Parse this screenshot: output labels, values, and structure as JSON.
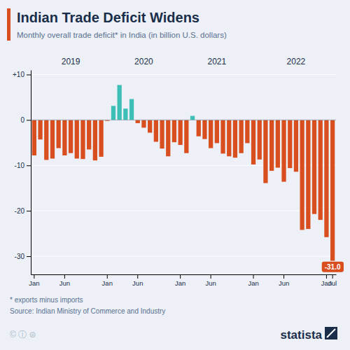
{
  "chart_data": {
    "type": "bar",
    "title": "Indian Trade Deficit Widens",
    "subtitle": "Monthly overall trade deficit* in India (in billion U.S. dollars)",
    "footnote": "* exports minus imports",
    "source": "Source: Indian Ministry of Commerce and Industry",
    "license": "©  Ⓘ  ⊜",
    "logo": "statista",
    "categories": [
      "Jan",
      null,
      null,
      null,
      null,
      "Jun",
      null,
      null,
      null,
      null,
      null,
      null,
      "Jan",
      null,
      null,
      null,
      null,
      "Jun",
      null,
      null,
      null,
      null,
      null,
      null,
      "Jan",
      null,
      null,
      null,
      null,
      "Jun",
      null,
      null,
      null,
      null,
      null,
      null,
      "Jan",
      null,
      null,
      null,
      null,
      "Jun",
      null,
      null,
      null,
      null,
      null,
      null,
      "Jan",
      "Jul"
    ],
    "values": [
      -7.8,
      -4.3,
      -8.8,
      -8.5,
      -6.2,
      -7.8,
      -7.3,
      -8.5,
      -8.6,
      -6.5,
      -8.9,
      -8.1,
      -0.2,
      3.1,
      7.7,
      2.5,
      4.6,
      -0.7,
      -1.7,
      -2.8,
      -4.8,
      -6.3,
      -8.0,
      -4.9,
      -5.5,
      -7.3,
      0.9,
      -3.6,
      -4.2,
      -6.2,
      -5.1,
      -7.4,
      -8.0,
      -8.3,
      -7.3,
      -5.1,
      -9.8,
      -8.7,
      -13.9,
      -11.2,
      -10.5,
      -13.6,
      -10.6,
      -11.4,
      -24.2,
      -24.0,
      -20.7,
      -22.0,
      -25.8,
      -31.0
    ],
    "colors": [
      "#D94E1F",
      "#D94E1F",
      "#D94E1F",
      "#D94E1F",
      "#D94E1F",
      "#D94E1F",
      "#D94E1F",
      "#D94E1F",
      "#D94E1F",
      "#D94E1F",
      "#D94E1F",
      "#D94E1F",
      "#D94E1F",
      "#3DBFB8",
      "#3DBFB8",
      "#3DBFB8",
      "#3DBFB8",
      "#D94E1F",
      "#D94E1F",
      "#D94E1F",
      "#D94E1F",
      "#D94E1F",
      "#D94E1F",
      "#D94E1F",
      "#D94E1F",
      "#D94E1F",
      "#3DBFB8",
      "#D94E1F",
      "#D94E1F",
      "#D94E1F",
      "#D94E1F",
      "#D94E1F",
      "#D94E1F",
      "#D94E1F",
      "#D94E1F",
      "#D94E1F",
      "#D94E1F",
      "#D94E1F",
      "#D94E1F",
      "#D94E1F",
      "#D94E1F",
      "#D94E1F",
      "#D94E1F",
      "#D94E1F",
      "#D94E1F",
      "#D94E1F",
      "#D94E1F",
      "#D94E1F",
      "#D94E1F",
      "#D94E1F"
    ],
    "ylim": [
      -34,
      11
    ],
    "yticks": [
      {
        "value": 10,
        "label": "+10"
      },
      0,
      -10,
      -20,
      -30
    ],
    "grid": true,
    "annotations": [
      {
        "text": "2019",
        "x": 6
      },
      {
        "text": "2020",
        "x": 18
      },
      {
        "text": "2021",
        "x": 30
      },
      {
        "text": "2022",
        "x": 43
      },
      {
        "text": "-31.0",
        "x": 49,
        "y": -31.0
      }
    ]
  }
}
